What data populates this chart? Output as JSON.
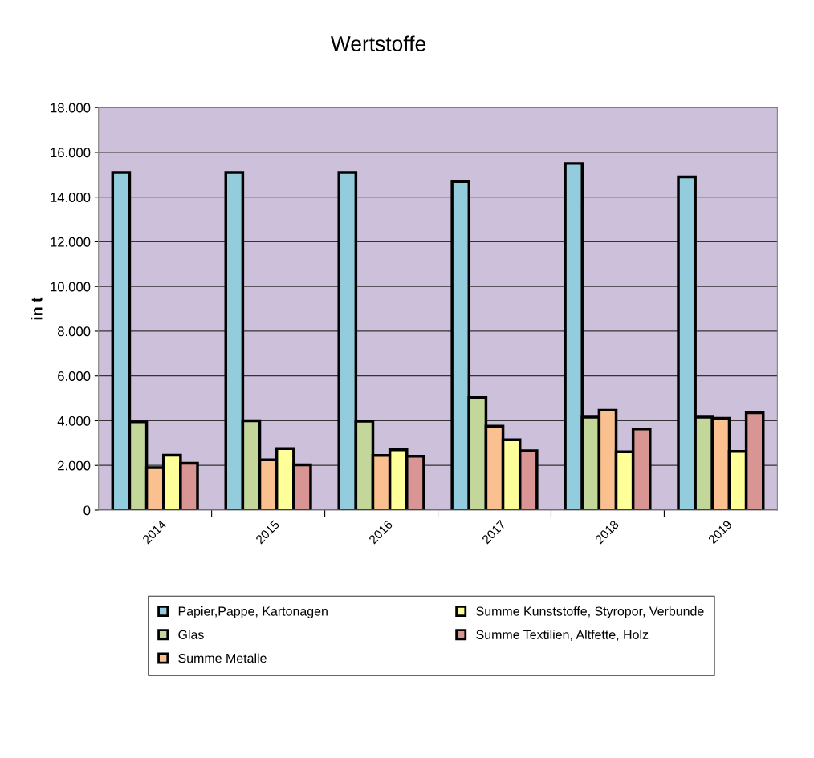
{
  "chart_data": {
    "type": "bar",
    "title": "Wertstoffe",
    "ylabel": "in t",
    "categories": [
      "2014",
      "2015",
      "2016",
      "2017",
      "2018",
      "2019"
    ],
    "series": [
      {
        "name": "Papier,Pappe, Kartonagen",
        "color": "#93cddd",
        "values": [
          15100,
          15100,
          15100,
          14700,
          15500,
          14900
        ]
      },
      {
        "name": "Glas",
        "color": "#c4d79b",
        "values": [
          3950,
          4000,
          3980,
          5030,
          4160,
          4160
        ]
      },
      {
        "name": "Summe Metalle",
        "color": "#fac090",
        "values": [
          1900,
          2250,
          2450,
          3760,
          4470,
          4110
        ]
      },
      {
        "name": "Summe Kunststoffe, Styropor, Verbunde",
        "color": "#ffff99",
        "values": [
          2460,
          2750,
          2700,
          3150,
          2610,
          2630
        ]
      },
      {
        "name": "Summe Textilien, Altfette, Holz",
        "color": "#d99594",
        "values": [
          2100,
          2030,
          2410,
          2650,
          3630,
          4360
        ]
      }
    ],
    "ylim": [
      0,
      18000
    ],
    "yticks": [
      {
        "value": 0,
        "label": "0"
      },
      {
        "value": 2000,
        "label": "2.000"
      },
      {
        "value": 4000,
        "label": "4.000"
      },
      {
        "value": 6000,
        "label": "6.000"
      },
      {
        "value": 8000,
        "label": "8.000"
      },
      {
        "value": 10000,
        "label": "10.000"
      },
      {
        "value": 12000,
        "label": "12.000"
      },
      {
        "value": 14000,
        "label": "14.000"
      },
      {
        "value": 16000,
        "label": "16.000"
      },
      {
        "value": 18000,
        "label": "18.000"
      }
    ],
    "grid": "y",
    "legend": "bottom"
  }
}
